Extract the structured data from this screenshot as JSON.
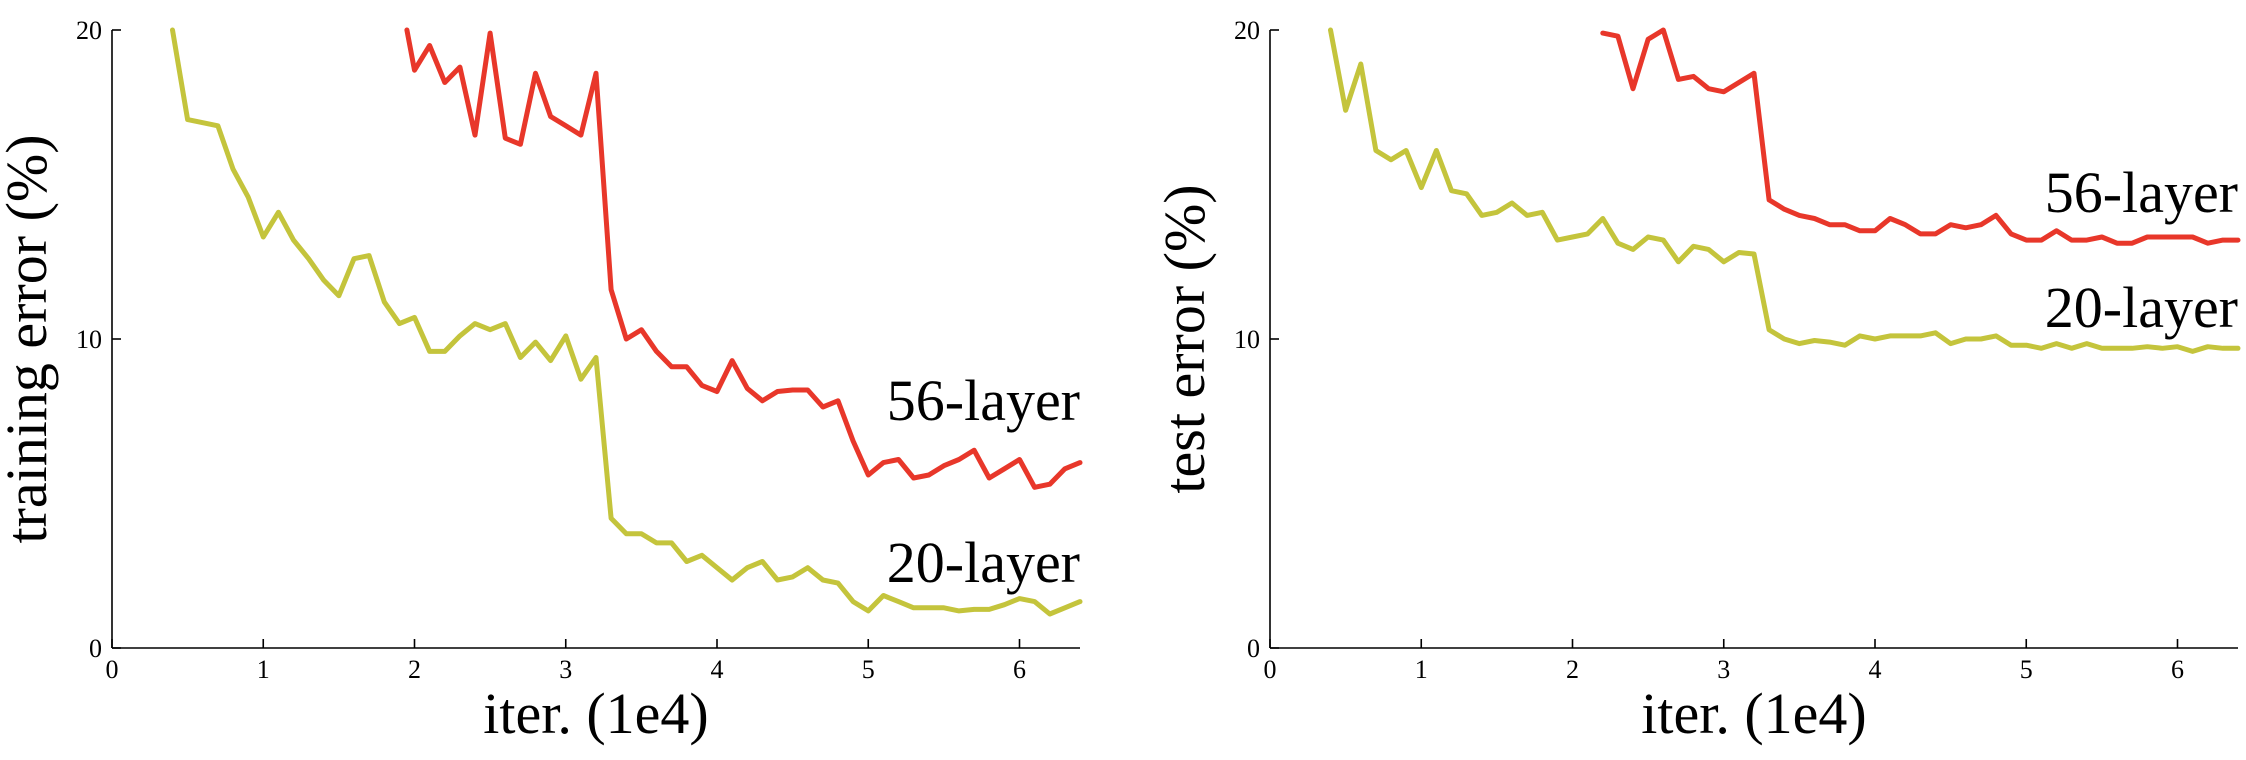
{
  "colors": {
    "series_56": "#e8372a",
    "series_20": "#c4c43c",
    "axis": "#000000"
  },
  "chart_data": [
    {
      "type": "line",
      "xlabel": "iter. (1e4)",
      "ylabel": "training error (%)",
      "xlim": [
        0,
        6.4
      ],
      "ylim": [
        0,
        20
      ],
      "x_ticks": [
        "0",
        "1",
        "2",
        "3",
        "4",
        "5",
        "6"
      ],
      "y_ticks": [
        "0",
        "10",
        "20"
      ],
      "series": [
        {
          "name": "56-layer",
          "color": "#e8372a",
          "x": [
            1.95,
            2.0,
            2.1,
            2.2,
            2.3,
            2.4,
            2.5,
            2.6,
            2.7,
            2.8,
            2.9,
            3.0,
            3.1,
            3.2,
            3.3,
            3.4,
            3.5,
            3.6,
            3.7,
            3.8,
            3.9,
            4.0,
            4.1,
            4.2,
            4.3,
            4.4,
            4.5,
            4.6,
            4.7,
            4.8,
            4.9,
            5.0,
            5.1,
            5.2,
            5.3,
            5.4,
            5.5,
            5.6,
            5.7,
            5.8,
            5.9,
            6.0,
            6.1,
            6.2,
            6.3,
            6.4
          ],
          "y": [
            20.0,
            18.7,
            19.5,
            18.3,
            18.8,
            16.6,
            19.9,
            16.5,
            16.3,
            18.6,
            17.2,
            16.9,
            16.6,
            18.6,
            11.6,
            10.0,
            10.3,
            9.6,
            9.1,
            9.1,
            8.5,
            8.3,
            9.3,
            8.4,
            8.0,
            8.3,
            8.35,
            8.35,
            7.8,
            8.0,
            6.7,
            5.6,
            6.0,
            6.1,
            5.5,
            5.6,
            5.9,
            6.1,
            6.4,
            5.5,
            5.8,
            6.1,
            5.2,
            5.3,
            5.8,
            6.0
          ]
        },
        {
          "name": "20-layer",
          "color": "#c4c43c",
          "x": [
            0.4,
            0.5,
            0.6,
            0.7,
            0.8,
            0.9,
            1.0,
            1.1,
            1.2,
            1.3,
            1.4,
            1.5,
            1.6,
            1.7,
            1.8,
            1.9,
            2.0,
            2.1,
            2.2,
            2.3,
            2.4,
            2.5,
            2.6,
            2.7,
            2.8,
            2.9,
            3.0,
            3.1,
            3.2,
            3.3,
            3.4,
            3.5,
            3.6,
            3.7,
            3.8,
            3.9,
            4.0,
            4.1,
            4.2,
            4.3,
            4.4,
            4.5,
            4.6,
            4.7,
            4.8,
            4.9,
            5.0,
            5.1,
            5.2,
            5.3,
            5.4,
            5.5,
            5.6,
            5.7,
            5.8,
            5.9,
            6.0,
            6.1,
            6.2,
            6.3,
            6.4
          ],
          "y": [
            20.0,
            17.1,
            17.0,
            16.9,
            15.5,
            14.6,
            13.3,
            14.1,
            13.2,
            12.6,
            11.9,
            11.4,
            12.6,
            12.7,
            11.2,
            10.5,
            10.7,
            9.6,
            9.6,
            10.1,
            10.5,
            10.3,
            10.5,
            9.4,
            9.9,
            9.3,
            10.1,
            8.7,
            9.4,
            4.2,
            3.7,
            3.7,
            3.4,
            3.4,
            2.8,
            3.0,
            2.6,
            2.2,
            2.6,
            2.8,
            2.2,
            2.3,
            2.6,
            2.2,
            2.1,
            1.5,
            1.2,
            1.7,
            1.5,
            1.3,
            1.3,
            1.3,
            1.2,
            1.25,
            1.25,
            1.4,
            1.6,
            1.5,
            1.1,
            1.3,
            1.5
          ]
        }
      ]
    },
    {
      "type": "line",
      "xlabel": "iter. (1e4)",
      "ylabel": "test error (%)",
      "xlim": [
        0,
        6.4
      ],
      "ylim": [
        0,
        20
      ],
      "x_ticks": [
        "0",
        "1",
        "2",
        "3",
        "4",
        "5",
        "6"
      ],
      "y_ticks": [
        "0",
        "10",
        "20"
      ],
      "series": [
        {
          "name": "56-layer",
          "color": "#e8372a",
          "x": [
            2.2,
            2.3,
            2.4,
            2.5,
            2.6,
            2.7,
            2.8,
            2.9,
            3.0,
            3.1,
            3.2,
            3.3,
            3.4,
            3.5,
            3.6,
            3.7,
            3.8,
            3.9,
            4.0,
            4.1,
            4.2,
            4.3,
            4.4,
            4.5,
            4.6,
            4.7,
            4.8,
            4.9,
            5.0,
            5.1,
            5.2,
            5.3,
            5.4,
            5.5,
            5.6,
            5.7,
            5.8,
            5.9,
            6.0,
            6.1,
            6.2,
            6.3,
            6.4
          ],
          "y": [
            19.9,
            19.8,
            18.1,
            19.7,
            20.0,
            18.4,
            18.5,
            18.1,
            18.0,
            18.3,
            18.6,
            14.5,
            14.2,
            14.0,
            13.9,
            13.7,
            13.7,
            13.5,
            13.5,
            13.9,
            13.7,
            13.4,
            13.4,
            13.7,
            13.6,
            13.7,
            14.0,
            13.4,
            13.2,
            13.2,
            13.5,
            13.2,
            13.2,
            13.3,
            13.1,
            13.1,
            13.3,
            13.3,
            13.3,
            13.3,
            13.1,
            13.2,
            13.2
          ]
        },
        {
          "name": "20-layer",
          "color": "#c4c43c",
          "x": [
            0.4,
            0.5,
            0.6,
            0.7,
            0.8,
            0.9,
            1.0,
            1.1,
            1.2,
            1.3,
            1.4,
            1.5,
            1.6,
            1.7,
            1.8,
            1.9,
            2.0,
            2.1,
            2.2,
            2.3,
            2.4,
            2.5,
            2.6,
            2.7,
            2.8,
            2.9,
            3.0,
            3.1,
            3.2,
            3.3,
            3.4,
            3.5,
            3.6,
            3.7,
            3.8,
            3.9,
            4.0,
            4.1,
            4.2,
            4.3,
            4.4,
            4.5,
            4.6,
            4.7,
            4.8,
            4.9,
            5.0,
            5.1,
            5.2,
            5.3,
            5.4,
            5.5,
            5.6,
            5.7,
            5.8,
            5.9,
            6.0,
            6.1,
            6.2,
            6.3,
            6.4
          ],
          "y": [
            20.0,
            17.4,
            18.9,
            16.1,
            15.8,
            16.1,
            14.9,
            16.1,
            14.8,
            14.7,
            14.0,
            14.1,
            14.4,
            14.0,
            14.1,
            13.2,
            13.3,
            13.4,
            13.9,
            13.1,
            12.9,
            13.3,
            13.2,
            12.5,
            13.0,
            12.9,
            12.5,
            12.8,
            12.75,
            10.3,
            10.0,
            9.85,
            9.95,
            9.9,
            9.8,
            10.1,
            10.0,
            10.1,
            10.1,
            10.1,
            10.2,
            9.85,
            10.0,
            10.0,
            10.1,
            9.8,
            9.8,
            9.7,
            9.85,
            9.7,
            9.85,
            9.7,
            9.7,
            9.7,
            9.75,
            9.7,
            9.75,
            9.6,
            9.75,
            9.7,
            9.7
          ]
        }
      ]
    }
  ]
}
